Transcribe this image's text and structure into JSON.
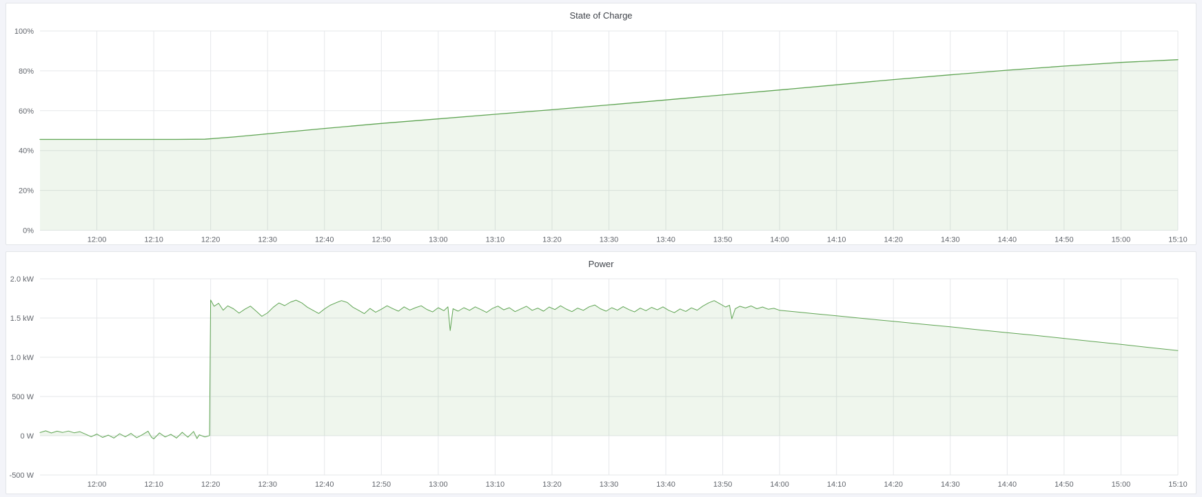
{
  "chart_data": [
    {
      "type": "area",
      "title": "State of Charge",
      "grid": true,
      "legend": "none",
      "x_axis": {
        "unit": "time of day",
        "t_unit": "minutes after 11:50",
        "t_min": 0,
        "t_max": 200,
        "ticks": [
          {
            "t": 10,
            "label": "12:00"
          },
          {
            "t": 20,
            "label": "12:10"
          },
          {
            "t": 30,
            "label": "12:20"
          },
          {
            "t": 40,
            "label": "12:30"
          },
          {
            "t": 50,
            "label": "12:40"
          },
          {
            "t": 60,
            "label": "12:50"
          },
          {
            "t": 70,
            "label": "13:00"
          },
          {
            "t": 80,
            "label": "13:10"
          },
          {
            "t": 90,
            "label": "13:20"
          },
          {
            "t": 100,
            "label": "13:30"
          },
          {
            "t": 110,
            "label": "13:40"
          },
          {
            "t": 120,
            "label": "13:50"
          },
          {
            "t": 130,
            "label": "14:00"
          },
          {
            "t": 140,
            "label": "14:10"
          },
          {
            "t": 150,
            "label": "14:20"
          },
          {
            "t": 160,
            "label": "14:30"
          },
          {
            "t": 170,
            "label": "14:40"
          },
          {
            "t": 180,
            "label": "14:50"
          },
          {
            "t": 190,
            "label": "15:00"
          },
          {
            "t": 200,
            "label": "15:10"
          }
        ]
      },
      "y_axis": {
        "unit": "%",
        "ylim": [
          0,
          100
        ],
        "ticks": [
          {
            "value": 0,
            "label": "0%"
          },
          {
            "value": 20,
            "label": "20%"
          },
          {
            "value": 40,
            "label": "40%"
          },
          {
            "value": 60,
            "label": "60%"
          },
          {
            "value": 80,
            "label": "80%"
          },
          {
            "value": 100,
            "label": "100%"
          }
        ]
      },
      "series": [
        {
          "name": "State of Charge",
          "color": "#5ea452",
          "fill_color": "rgba(94,164,82,0.10)",
          "fill_baseline": 0,
          "points": [
            [
              0,
              45.6
            ],
            [
              12,
              45.6
            ],
            [
              24,
              45.6
            ],
            [
              29,
              45.7
            ],
            [
              34,
              46.8
            ],
            [
              40,
              48.4
            ],
            [
              50,
              51.1
            ],
            [
              60,
              53.6
            ],
            [
              70,
              55.9
            ],
            [
              80,
              58.2
            ],
            [
              90,
              60.5
            ],
            [
              100,
              62.9
            ],
            [
              110,
              65.4
            ],
            [
              120,
              67.9
            ],
            [
              130,
              70.4
            ],
            [
              140,
              73.0
            ],
            [
              150,
              75.6
            ],
            [
              160,
              78.0
            ],
            [
              170,
              80.3
            ],
            [
              180,
              82.4
            ],
            [
              190,
              84.2
            ],
            [
              200,
              85.6
            ]
          ]
        }
      ]
    },
    {
      "type": "area",
      "title": "Power",
      "grid": true,
      "legend": "none",
      "x_axis": {
        "unit": "time of day",
        "t_unit": "minutes after 11:50",
        "t_min": 0,
        "t_max": 200,
        "ticks": [
          {
            "t": 10,
            "label": "12:00"
          },
          {
            "t": 20,
            "label": "12:10"
          },
          {
            "t": 30,
            "label": "12:20"
          },
          {
            "t": 40,
            "label": "12:30"
          },
          {
            "t": 50,
            "label": "12:40"
          },
          {
            "t": 60,
            "label": "12:50"
          },
          {
            "t": 70,
            "label": "13:00"
          },
          {
            "t": 80,
            "label": "13:10"
          },
          {
            "t": 90,
            "label": "13:20"
          },
          {
            "t": 100,
            "label": "13:30"
          },
          {
            "t": 110,
            "label": "13:40"
          },
          {
            "t": 120,
            "label": "13:50"
          },
          {
            "t": 130,
            "label": "14:00"
          },
          {
            "t": 140,
            "label": "14:10"
          },
          {
            "t": 150,
            "label": "14:20"
          },
          {
            "t": 160,
            "label": "14:30"
          },
          {
            "t": 170,
            "label": "14:40"
          },
          {
            "t": 180,
            "label": "14:50"
          },
          {
            "t": 190,
            "label": "15:00"
          },
          {
            "t": 200,
            "label": "15:10"
          }
        ]
      },
      "y_axis": {
        "unit": "W",
        "ylim": [
          -500,
          2000
        ],
        "ticks": [
          {
            "value": -500,
            "label": "-500 W"
          },
          {
            "value": 0,
            "label": "0 W"
          },
          {
            "value": 500,
            "label": "500 W"
          },
          {
            "value": 1000,
            "label": "1.0 kW"
          },
          {
            "value": 1500,
            "label": "1.5 kW"
          },
          {
            "value": 2000,
            "label": "2.0 kW"
          }
        ]
      },
      "series": [
        {
          "name": "Power",
          "color": "#5ea452",
          "fill_color": "rgba(94,164,82,0.10)",
          "fill_baseline": 0,
          "points": [
            [
              0,
              40
            ],
            [
              1,
              62
            ],
            [
              2,
              35
            ],
            [
              3,
              58
            ],
            [
              4,
              42
            ],
            [
              5,
              60
            ],
            [
              6,
              38
            ],
            [
              7,
              52
            ],
            [
              8,
              20
            ],
            [
              9,
              -12
            ],
            [
              10,
              22
            ],
            [
              11,
              -22
            ],
            [
              12,
              8
            ],
            [
              13,
              -30
            ],
            [
              14,
              26
            ],
            [
              15,
              -14
            ],
            [
              16,
              30
            ],
            [
              17,
              -26
            ],
            [
              18,
              14
            ],
            [
              19,
              58
            ],
            [
              19.6,
              -20
            ],
            [
              20,
              -40
            ],
            [
              21,
              36
            ],
            [
              22,
              -16
            ],
            [
              23,
              18
            ],
            [
              24,
              -30
            ],
            [
              25,
              44
            ],
            [
              26,
              -18
            ],
            [
              27,
              54
            ],
            [
              27.6,
              -36
            ],
            [
              28,
              12
            ],
            [
              29,
              -16
            ],
            [
              29.8,
              2
            ],
            [
              30,
              1730
            ],
            [
              30.6,
              1650
            ],
            [
              31.4,
              1688
            ],
            [
              32.2,
              1600
            ],
            [
              33,
              1655
            ],
            [
              34,
              1618
            ],
            [
              35,
              1562
            ],
            [
              36,
              1612
            ],
            [
              37,
              1652
            ],
            [
              38,
              1588
            ],
            [
              39,
              1522
            ],
            [
              40,
              1566
            ],
            [
              41,
              1638
            ],
            [
              42,
              1692
            ],
            [
              43,
              1658
            ],
            [
              44,
              1702
            ],
            [
              45,
              1728
            ],
            [
              46,
              1694
            ],
            [
              47,
              1638
            ],
            [
              48,
              1598
            ],
            [
              49,
              1558
            ],
            [
              50,
              1616
            ],
            [
              51,
              1662
            ],
            [
              52,
              1694
            ],
            [
              53,
              1722
            ],
            [
              54,
              1698
            ],
            [
              55,
              1638
            ],
            [
              56,
              1598
            ],
            [
              57,
              1556
            ],
            [
              58,
              1622
            ],
            [
              59,
              1574
            ],
            [
              60,
              1612
            ],
            [
              61,
              1656
            ],
            [
              62,
              1620
            ],
            [
              63,
              1588
            ],
            [
              64,
              1642
            ],
            [
              65,
              1602
            ],
            [
              66,
              1632
            ],
            [
              67,
              1656
            ],
            [
              68,
              1610
            ],
            [
              69,
              1578
            ],
            [
              70,
              1632
            ],
            [
              71,
              1594
            ],
            [
              71.7,
              1642
            ],
            [
              72.1,
              1340
            ],
            [
              72.6,
              1618
            ],
            [
              73.5,
              1588
            ],
            [
              74.5,
              1632
            ],
            [
              75.5,
              1598
            ],
            [
              76.5,
              1642
            ],
            [
              77.5,
              1608
            ],
            [
              78.5,
              1572
            ],
            [
              79.5,
              1622
            ],
            [
              80.5,
              1652
            ],
            [
              81.5,
              1604
            ],
            [
              82.5,
              1632
            ],
            [
              83.5,
              1582
            ],
            [
              84.5,
              1616
            ],
            [
              85.5,
              1650
            ],
            [
              86.5,
              1598
            ],
            [
              87.5,
              1626
            ],
            [
              88.5,
              1588
            ],
            [
              89.5,
              1640
            ],
            [
              90.5,
              1608
            ],
            [
              91.5,
              1656
            ],
            [
              92.5,
              1614
            ],
            [
              93.5,
              1582
            ],
            [
              94.5,
              1626
            ],
            [
              95.5,
              1598
            ],
            [
              96.5,
              1642
            ],
            [
              97.5,
              1666
            ],
            [
              98.5,
              1618
            ],
            [
              99.5,
              1588
            ],
            [
              100.5,
              1632
            ],
            [
              101.5,
              1600
            ],
            [
              102.5,
              1646
            ],
            [
              103.5,
              1608
            ],
            [
              104.5,
              1578
            ],
            [
              105.5,
              1626
            ],
            [
              106.5,
              1594
            ],
            [
              107.5,
              1636
            ],
            [
              108.5,
              1604
            ],
            [
              109.5,
              1642
            ],
            [
              110.5,
              1598
            ],
            [
              111.5,
              1568
            ],
            [
              112.5,
              1616
            ],
            [
              113.5,
              1584
            ],
            [
              114.5,
              1630
            ],
            [
              115.5,
              1600
            ],
            [
              116.5,
              1652
            ],
            [
              117.5,
              1692
            ],
            [
              118.5,
              1722
            ],
            [
              119.5,
              1682
            ],
            [
              120.5,
              1640
            ],
            [
              121.2,
              1662
            ],
            [
              121.6,
              1490
            ],
            [
              122.2,
              1618
            ],
            [
              123,
              1650
            ],
            [
              124,
              1628
            ],
            [
              125,
              1654
            ],
            [
              126,
              1618
            ],
            [
              127,
              1640
            ],
            [
              128,
              1612
            ],
            [
              129,
              1624
            ],
            [
              130,
              1598
            ],
            [
              133,
              1578
            ],
            [
              136,
              1556
            ],
            [
              140,
              1528
            ],
            [
              145,
              1492
            ],
            [
              150,
              1458
            ],
            [
              155,
              1422
            ],
            [
              160,
              1388
            ],
            [
              165,
              1350
            ],
            [
              170,
              1314
            ],
            [
              175,
              1278
            ],
            [
              180,
              1240
            ],
            [
              185,
              1202
            ],
            [
              190,
              1164
            ],
            [
              195,
              1124
            ],
            [
              200,
              1086
            ]
          ]
        }
      ]
    }
  ],
  "style": {
    "grid_color": "#e5e7ea",
    "axis_label_color": "#61656c",
    "title_color": "#3f434a",
    "panel_background": "#ffffff",
    "page_background": "#f3f4f9"
  }
}
